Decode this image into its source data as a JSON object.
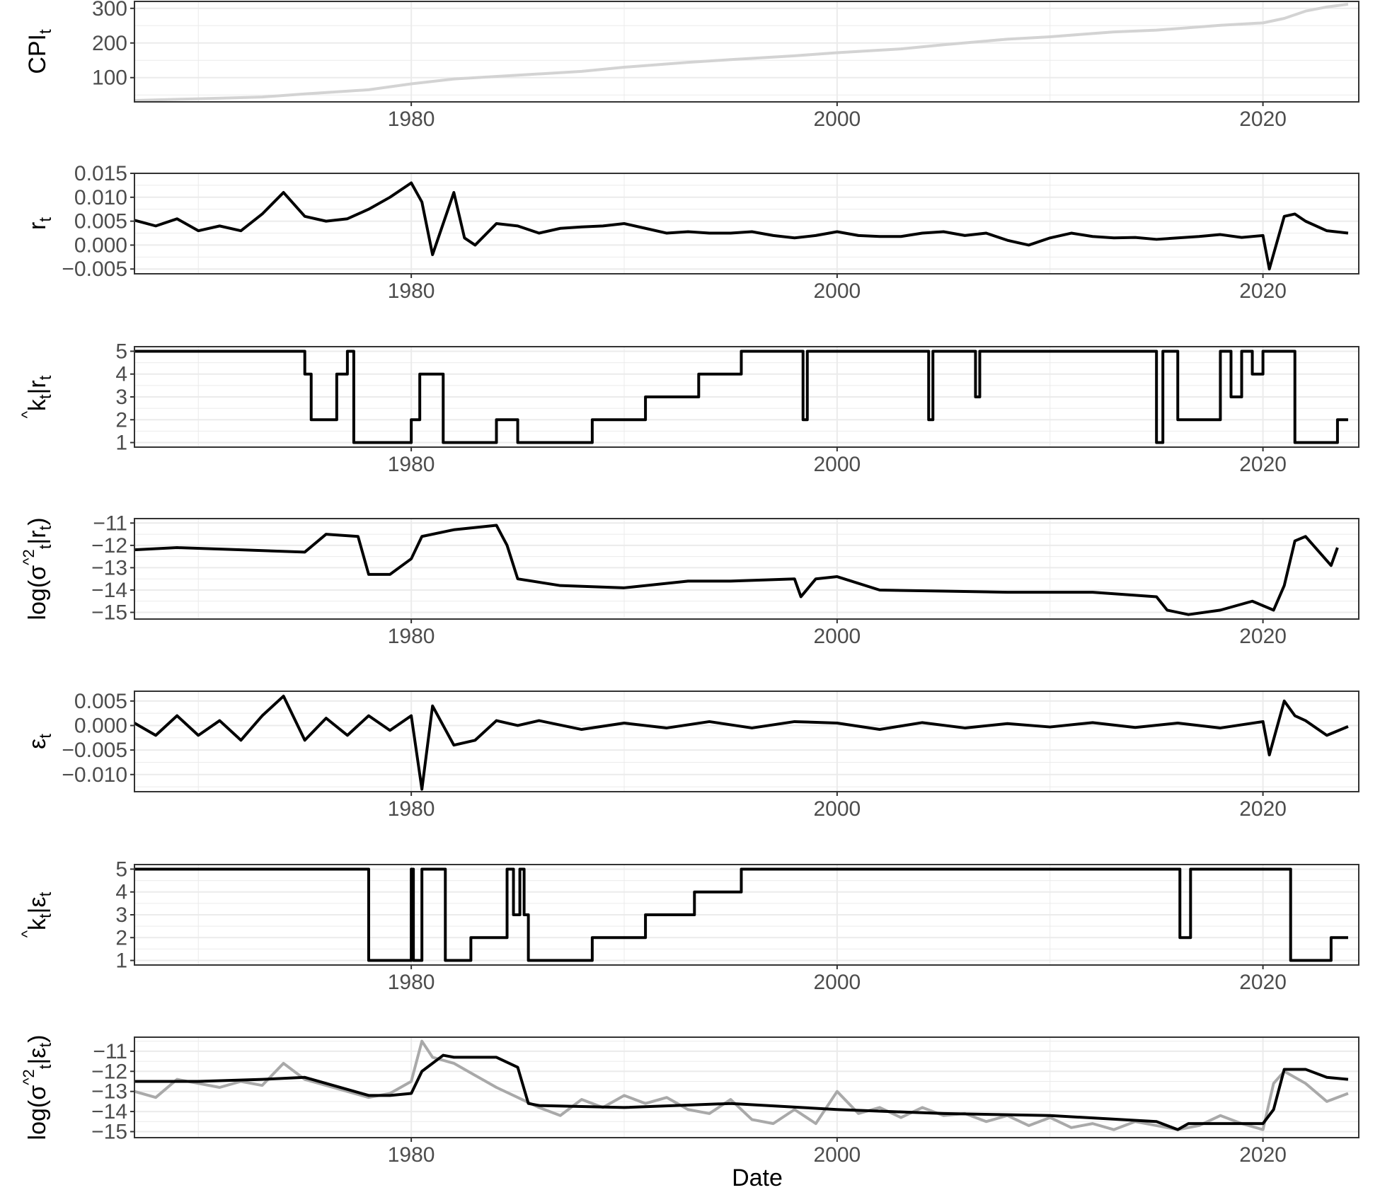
{
  "figure": {
    "xlabel": "Date"
  },
  "chart_data": [
    {
      "type": "line",
      "ylabel": "CPI",
      "ylabel_subscript": "t",
      "xlim": [
        1967,
        2024.5
      ],
      "ylim": [
        30,
        320
      ],
      "x_ticks": [
        1980,
        2000,
        2020
      ],
      "x_tick_labels": [
        "1980",
        "2000",
        "2020"
      ],
      "y_ticks": [
        100,
        200,
        300
      ],
      "y_tick_labels": [
        "100",
        "200",
        "300"
      ],
      "grid": true,
      "legend": "none",
      "series": [
        {
          "color": "#d3d3d3",
          "x": [
            1967,
            1970,
            1973,
            1975,
            1978,
            1980,
            1982,
            1985,
            1988,
            1990,
            1993,
            1995,
            1998,
            2000,
            2003,
            2005,
            2008,
            2010,
            2013,
            2015,
            2018,
            2020,
            2021,
            2022,
            2023,
            2024
          ],
          "y": [
            34,
            39,
            44,
            53,
            65,
            82,
            96,
            107,
            118,
            130,
            144,
            152,
            163,
            172,
            183,
            195,
            211,
            218,
            232,
            237,
            251,
            258,
            271,
            292,
            304,
            312
          ]
        }
      ]
    },
    {
      "type": "line",
      "ylabel": "r",
      "ylabel_subscript": "t",
      "xlim": [
        1967,
        2024.5
      ],
      "ylim": [
        -0.006,
        0.015
      ],
      "x_ticks": [
        1980,
        2000,
        2020
      ],
      "x_tick_labels": [
        "1980",
        "2000",
        "2020"
      ],
      "y_ticks": [
        -0.005,
        0.0,
        0.005,
        0.01,
        0.015
      ],
      "y_tick_labels": [
        "−0.005",
        "0.000",
        "0.005",
        "0.010",
        "0.015"
      ],
      "grid": true,
      "legend": "none",
      "series": [
        {
          "color": "#000000",
          "x": [
            1967,
            1968,
            1969,
            1970,
            1971,
            1972,
            1973,
            1974,
            1975,
            1976,
            1977,
            1978,
            1979,
            1980,
            1980.5,
            1981,
            1982,
            1982.5,
            1983,
            1984,
            1985,
            1986,
            1987,
            1988,
            1989,
            1990,
            1991,
            1992,
            1993,
            1994,
            1995,
            1996,
            1997,
            1998,
            1999,
            2000,
            2001,
            2002,
            2003,
            2004,
            2005,
            2006,
            2007,
            2008,
            2009,
            2010,
            2011,
            2012,
            2013,
            2014,
            2015,
            2016,
            2017,
            2018,
            2019,
            2020,
            2020.3,
            2021,
            2021.5,
            2022,
            2023,
            2024
          ],
          "y": [
            0.0052,
            0.004,
            0.0055,
            0.003,
            0.004,
            0.003,
            0.0065,
            0.011,
            0.006,
            0.005,
            0.0055,
            0.0075,
            0.01,
            0.013,
            0.009,
            -0.002,
            0.011,
            0.0015,
            0.0,
            0.0045,
            0.004,
            0.0025,
            0.0035,
            0.0038,
            0.004,
            0.0045,
            0.0035,
            0.0025,
            0.0028,
            0.0025,
            0.0025,
            0.0028,
            0.002,
            0.0015,
            0.002,
            0.0028,
            0.002,
            0.0018,
            0.0018,
            0.0025,
            0.0028,
            0.002,
            0.0025,
            0.001,
            0.0,
            0.0015,
            0.0025,
            0.0018,
            0.0015,
            0.0016,
            0.0012,
            0.0015,
            0.0018,
            0.0022,
            0.0016,
            0.002,
            -0.005,
            0.006,
            0.0065,
            0.005,
            0.003,
            0.0025
          ]
        }
      ]
    },
    {
      "type": "line",
      "ylabel": "k",
      "ylabel_hat": true,
      "ylabel_subscript": "t",
      "ylabel_condition": "r",
      "ylabel_condition_subscript": "t",
      "xlim": [
        1967,
        2024.5
      ],
      "ylim": [
        0.8,
        5.2
      ],
      "x_ticks": [
        1980,
        2000,
        2020
      ],
      "x_tick_labels": [
        "1980",
        "2000",
        "2020"
      ],
      "y_ticks": [
        1,
        2,
        3,
        4,
        5
      ],
      "y_tick_labels": [
        "1",
        "2",
        "3",
        "4",
        "5"
      ],
      "grid": true,
      "legend": "none",
      "series": [
        {
          "color": "#000000",
          "step": true,
          "x": [
            1967,
            1975,
            1975.3,
            1976.5,
            1977,
            1977.3,
            1980,
            1980.4,
            1981.5,
            1984,
            1985,
            1988.5,
            1991,
            1993.5,
            1995.5,
            1998.4,
            1998.6,
            2004.3,
            2004.5,
            2006.5,
            2006.7,
            2015,
            2015.3,
            2016,
            2016.5,
            2018,
            2018.5,
            2019,
            2019.5,
            2020,
            2021.5,
            2023.5
          ],
          "y": [
            5,
            4,
            2,
            4,
            5,
            1,
            2,
            4,
            1,
            2,
            1,
            2,
            3,
            4,
            5,
            2,
            5,
            2,
            5,
            3,
            5,
            1,
            5,
            2,
            2,
            5,
            3,
            5,
            4,
            5,
            1,
            2
          ]
        }
      ]
    },
    {
      "type": "line",
      "ylabel": "log",
      "ylabel_hat_sigma": true,
      "ylabel_condition": "r",
      "ylabel_condition_subscript": "t",
      "xlim": [
        1967,
        2024.5
      ],
      "ylim": [
        -15.3,
        -10.8
      ],
      "x_ticks": [
        1980,
        2000,
        2020
      ],
      "x_tick_labels": [
        "1980",
        "2000",
        "2020"
      ],
      "y_ticks": [
        -15,
        -14,
        -13,
        -12,
        -11
      ],
      "y_tick_labels": [
        "−15",
        "−14",
        "−13",
        "−12",
        "−11"
      ],
      "grid": true,
      "legend": "none",
      "series": [
        {
          "color": "#000000",
          "x": [
            1967,
            1969,
            1972,
            1975,
            1976,
            1977.5,
            1978,
            1979,
            1980,
            1980.5,
            1982,
            1984,
            1984.5,
            1985,
            1987,
            1990,
            1993,
            1995,
            1998,
            1998.3,
            1999,
            2000,
            2002,
            2005,
            2008,
            2012,
            2015,
            2015.5,
            2016.5,
            2018,
            2019.5,
            2020.5,
            2021,
            2021.5,
            2022,
            2023.2,
            2023.5
          ],
          "y": [
            -12.2,
            -12.1,
            -12.2,
            -12.3,
            -11.5,
            -11.6,
            -13.3,
            -13.3,
            -12.6,
            -11.6,
            -11.3,
            -11.1,
            -12,
            -13.5,
            -13.8,
            -13.9,
            -13.6,
            -13.6,
            -13.5,
            -14.3,
            -13.5,
            -13.4,
            -14,
            -14.05,
            -14.1,
            -14.1,
            -14.3,
            -14.9,
            -15.1,
            -14.9,
            -14.5,
            -14.9,
            -13.8,
            -11.8,
            -11.6,
            -12.9,
            -12.1
          ]
        }
      ]
    },
    {
      "type": "line",
      "ylabel": "ε",
      "ylabel_subscript": "t",
      "xlim": [
        1967,
        2024.5
      ],
      "ylim": [
        -0.0135,
        0.007
      ],
      "x_ticks": [
        1980,
        2000,
        2020
      ],
      "x_tick_labels": [
        "1980",
        "2000",
        "2020"
      ],
      "y_ticks": [
        -0.01,
        -0.005,
        0.0,
        0.005
      ],
      "y_tick_labels": [
        "−0.010",
        "−0.005",
        "0.000",
        "0.005"
      ],
      "grid": true,
      "legend": "none",
      "series": [
        {
          "color": "#000000",
          "x": [
            1967,
            1968,
            1969,
            1970,
            1971,
            1972,
            1973,
            1974,
            1975,
            1976,
            1977,
            1978,
            1979,
            1980,
            1980.5,
            1981,
            1982,
            1983,
            1984,
            1985,
            1986,
            1988,
            1990,
            1992,
            1994,
            1996,
            1998,
            2000,
            2002,
            2004,
            2006,
            2008,
            2010,
            2012,
            2014,
            2016,
            2018,
            2020,
            2020.3,
            2021,
            2021.5,
            2022,
            2023,
            2024
          ],
          "y": [
            0.0005,
            -0.002,
            0.002,
            -0.002,
            0.001,
            -0.003,
            0.002,
            0.006,
            -0.003,
            0.0015,
            -0.002,
            0.002,
            -0.001,
            0.002,
            -0.013,
            0.004,
            -0.004,
            -0.003,
            0.001,
            0.0,
            0.001,
            -0.0008,
            0.0005,
            -0.0005,
            0.0008,
            -0.0005,
            0.0008,
            0.0005,
            -0.0008,
            0.0006,
            -0.0005,
            0.0004,
            -0.0003,
            0.0006,
            -0.0004,
            0.0005,
            -0.0005,
            0.0008,
            -0.006,
            0.005,
            0.002,
            0.001,
            -0.002,
            -0.0002
          ]
        }
      ]
    },
    {
      "type": "line",
      "ylabel": "k",
      "ylabel_hat": true,
      "ylabel_subscript": "t",
      "ylabel_condition": "ε",
      "ylabel_condition_subscript": "t",
      "xlim": [
        1967,
        2024.5
      ],
      "ylim": [
        0.8,
        5.2
      ],
      "x_ticks": [
        1980,
        2000,
        2020
      ],
      "x_tick_labels": [
        "1980",
        "2000",
        "2020"
      ],
      "y_ticks": [
        1,
        2,
        3,
        4,
        5
      ],
      "y_tick_labels": [
        "1",
        "2",
        "3",
        "4",
        "5"
      ],
      "grid": true,
      "legend": "none",
      "series": [
        {
          "color": "#000000",
          "step": true,
          "x": [
            1967,
            1978,
            1980,
            1980.1,
            1980.5,
            1981.6,
            1982.8,
            1983,
            1984.5,
            1984.8,
            1985.1,
            1985.3,
            1985.5,
            1988.5,
            1990.8,
            1991,
            1993.3,
            1995.5,
            2016.1,
            2016.6,
            2021.3,
            2023.2
          ],
          "y": [
            5,
            1,
            5,
            1,
            5,
            1,
            2,
            2,
            5,
            3,
            5,
            3,
            1,
            2,
            2,
            3,
            4,
            5,
            2,
            5,
            1,
            2
          ]
        }
      ]
    },
    {
      "type": "line",
      "ylabel": "log",
      "ylabel_hat_sigma": true,
      "ylabel_condition": "ε",
      "ylabel_condition_subscript": "t",
      "xlim": [
        1967,
        2024.5
      ],
      "ylim": [
        -15.3,
        -10.3
      ],
      "x_ticks": [
        1980,
        2000,
        2020
      ],
      "x_tick_labels": [
        "1980",
        "2000",
        "2020"
      ],
      "y_ticks": [
        -15,
        -14,
        -13,
        -12,
        -11
      ],
      "y_tick_labels": [
        "−15",
        "−14",
        "−13",
        "−12",
        "−11"
      ],
      "grid": true,
      "legend": "none",
      "series": [
        {
          "color": "#a9a9a9",
          "x": [
            1967,
            1968,
            1969,
            1970,
            1971,
            1972,
            1973,
            1974,
            1975,
            1976,
            1977,
            1978,
            1979,
            1980,
            1980.5,
            1981,
            1982,
            1983,
            1984,
            1985,
            1986,
            1987,
            1988,
            1989,
            1990,
            1991,
            1992,
            1993,
            1994,
            1995,
            1996,
            1997,
            1998,
            1999,
            2000,
            2001,
            2002,
            2003,
            2004,
            2005,
            2006,
            2007,
            2008,
            2009,
            2010,
            2011,
            2012,
            2013,
            2014,
            2015,
            2016,
            2017,
            2018,
            2019,
            2020,
            2020.5,
            2021,
            2022,
            2023,
            2024
          ],
          "y": [
            -13,
            -13.3,
            -12.4,
            -12.6,
            -12.8,
            -12.5,
            -12.7,
            -11.6,
            -12.4,
            -12.7,
            -13,
            -13.3,
            -13.1,
            -12.5,
            -10.5,
            -11.3,
            -11.6,
            -12.2,
            -12.8,
            -13.3,
            -13.8,
            -14.2,
            -13.4,
            -13.8,
            -13.2,
            -13.6,
            -13.3,
            -13.9,
            -14.1,
            -13.4,
            -14.4,
            -14.6,
            -13.9,
            -14.6,
            -13,
            -14.1,
            -13.8,
            -14.3,
            -13.8,
            -14.2,
            -14.1,
            -14.5,
            -14.2,
            -14.7,
            -14.3,
            -14.8,
            -14.6,
            -14.9,
            -14.5,
            -14.7,
            -14.9,
            -14.7,
            -14.2,
            -14.6,
            -14.9,
            -12.6,
            -12,
            -12.6,
            -13.5,
            -13.1
          ]
        },
        {
          "color": "#000000",
          "x": [
            1967,
            1970,
            1973,
            1975,
            1978,
            1979,
            1980,
            1980.5,
            1981.5,
            1982,
            1984,
            1985,
            1985.5,
            1986,
            1990,
            1995,
            2000,
            2005,
            2010,
            2015,
            2016,
            2016.5,
            2018,
            2020,
            2020.5,
            2021,
            2022,
            2023,
            2024
          ],
          "y": [
            -12.5,
            -12.5,
            -12.4,
            -12.3,
            -13.2,
            -13.2,
            -13.1,
            -12,
            -11.2,
            -11.3,
            -11.3,
            -11.8,
            -13.6,
            -13.7,
            -13.8,
            -13.6,
            -13.9,
            -14.1,
            -14.2,
            -14.5,
            -14.9,
            -14.6,
            -14.6,
            -14.6,
            -13.9,
            -11.9,
            -11.9,
            -12.3,
            -12.4
          ]
        }
      ]
    }
  ]
}
